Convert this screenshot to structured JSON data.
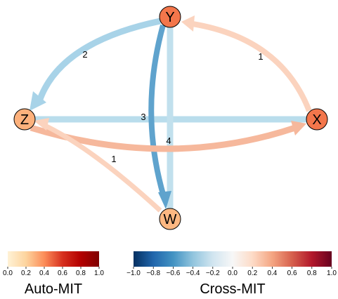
{
  "nodes": [
    {
      "id": "Y",
      "label": "Y",
      "auto_mit": 0.45
    },
    {
      "id": "Z",
      "label": "Z",
      "auto_mit": 0.3
    },
    {
      "id": "X",
      "label": "X",
      "auto_mit": 0.45
    },
    {
      "id": "W",
      "label": "W",
      "auto_mit": 0.28
    }
  ],
  "links": [
    {
      "id": "Y-Z",
      "label": "2",
      "color": "#a8d3e8",
      "directed": true
    },
    {
      "id": "X-Y",
      "label": "1",
      "color": "#fbd3be",
      "directed": true
    },
    {
      "id": "Z-X",
      "label": "3",
      "color": "#b9ddec",
      "directed": false
    },
    {
      "id": "Y-W",
      "label": "",
      "color": "#c1e0ed",
      "directed": false
    },
    {
      "id": "Y-W-curve",
      "label": "4",
      "color": "#5fa3cd",
      "directed": true
    },
    {
      "id": "Z-X-curve",
      "label": "",
      "color": "#f6b89c",
      "directed": true
    },
    {
      "id": "W-Z",
      "label": "1",
      "color": "#fbd3be",
      "directed": true
    }
  ],
  "colorbars": {
    "auto": {
      "title": "Auto-MIT",
      "ticks": [
        "0.0",
        "0.2",
        "0.4",
        "0.6",
        "0.8",
        "1.0"
      ],
      "stops": [
        "#fff2d6",
        "#fdd49e",
        "#fc8d59",
        "#d7301f",
        "#b30000",
        "#7f0000"
      ]
    },
    "cross": {
      "title": "Cross-MIT",
      "ticks": [
        "−1.0",
        "−0.8",
        "−0.6",
        "−0.4",
        "−0.2",
        "0.0",
        "0.2",
        "0.4",
        "0.6",
        "0.8",
        "1.0"
      ],
      "stops": [
        "#053061",
        "#2166ac",
        "#4393c3",
        "#92c5de",
        "#d1e5f0",
        "#f7f7f7",
        "#fddbc7",
        "#f4a582",
        "#d6604d",
        "#b2182b",
        "#67001f"
      ]
    }
  }
}
